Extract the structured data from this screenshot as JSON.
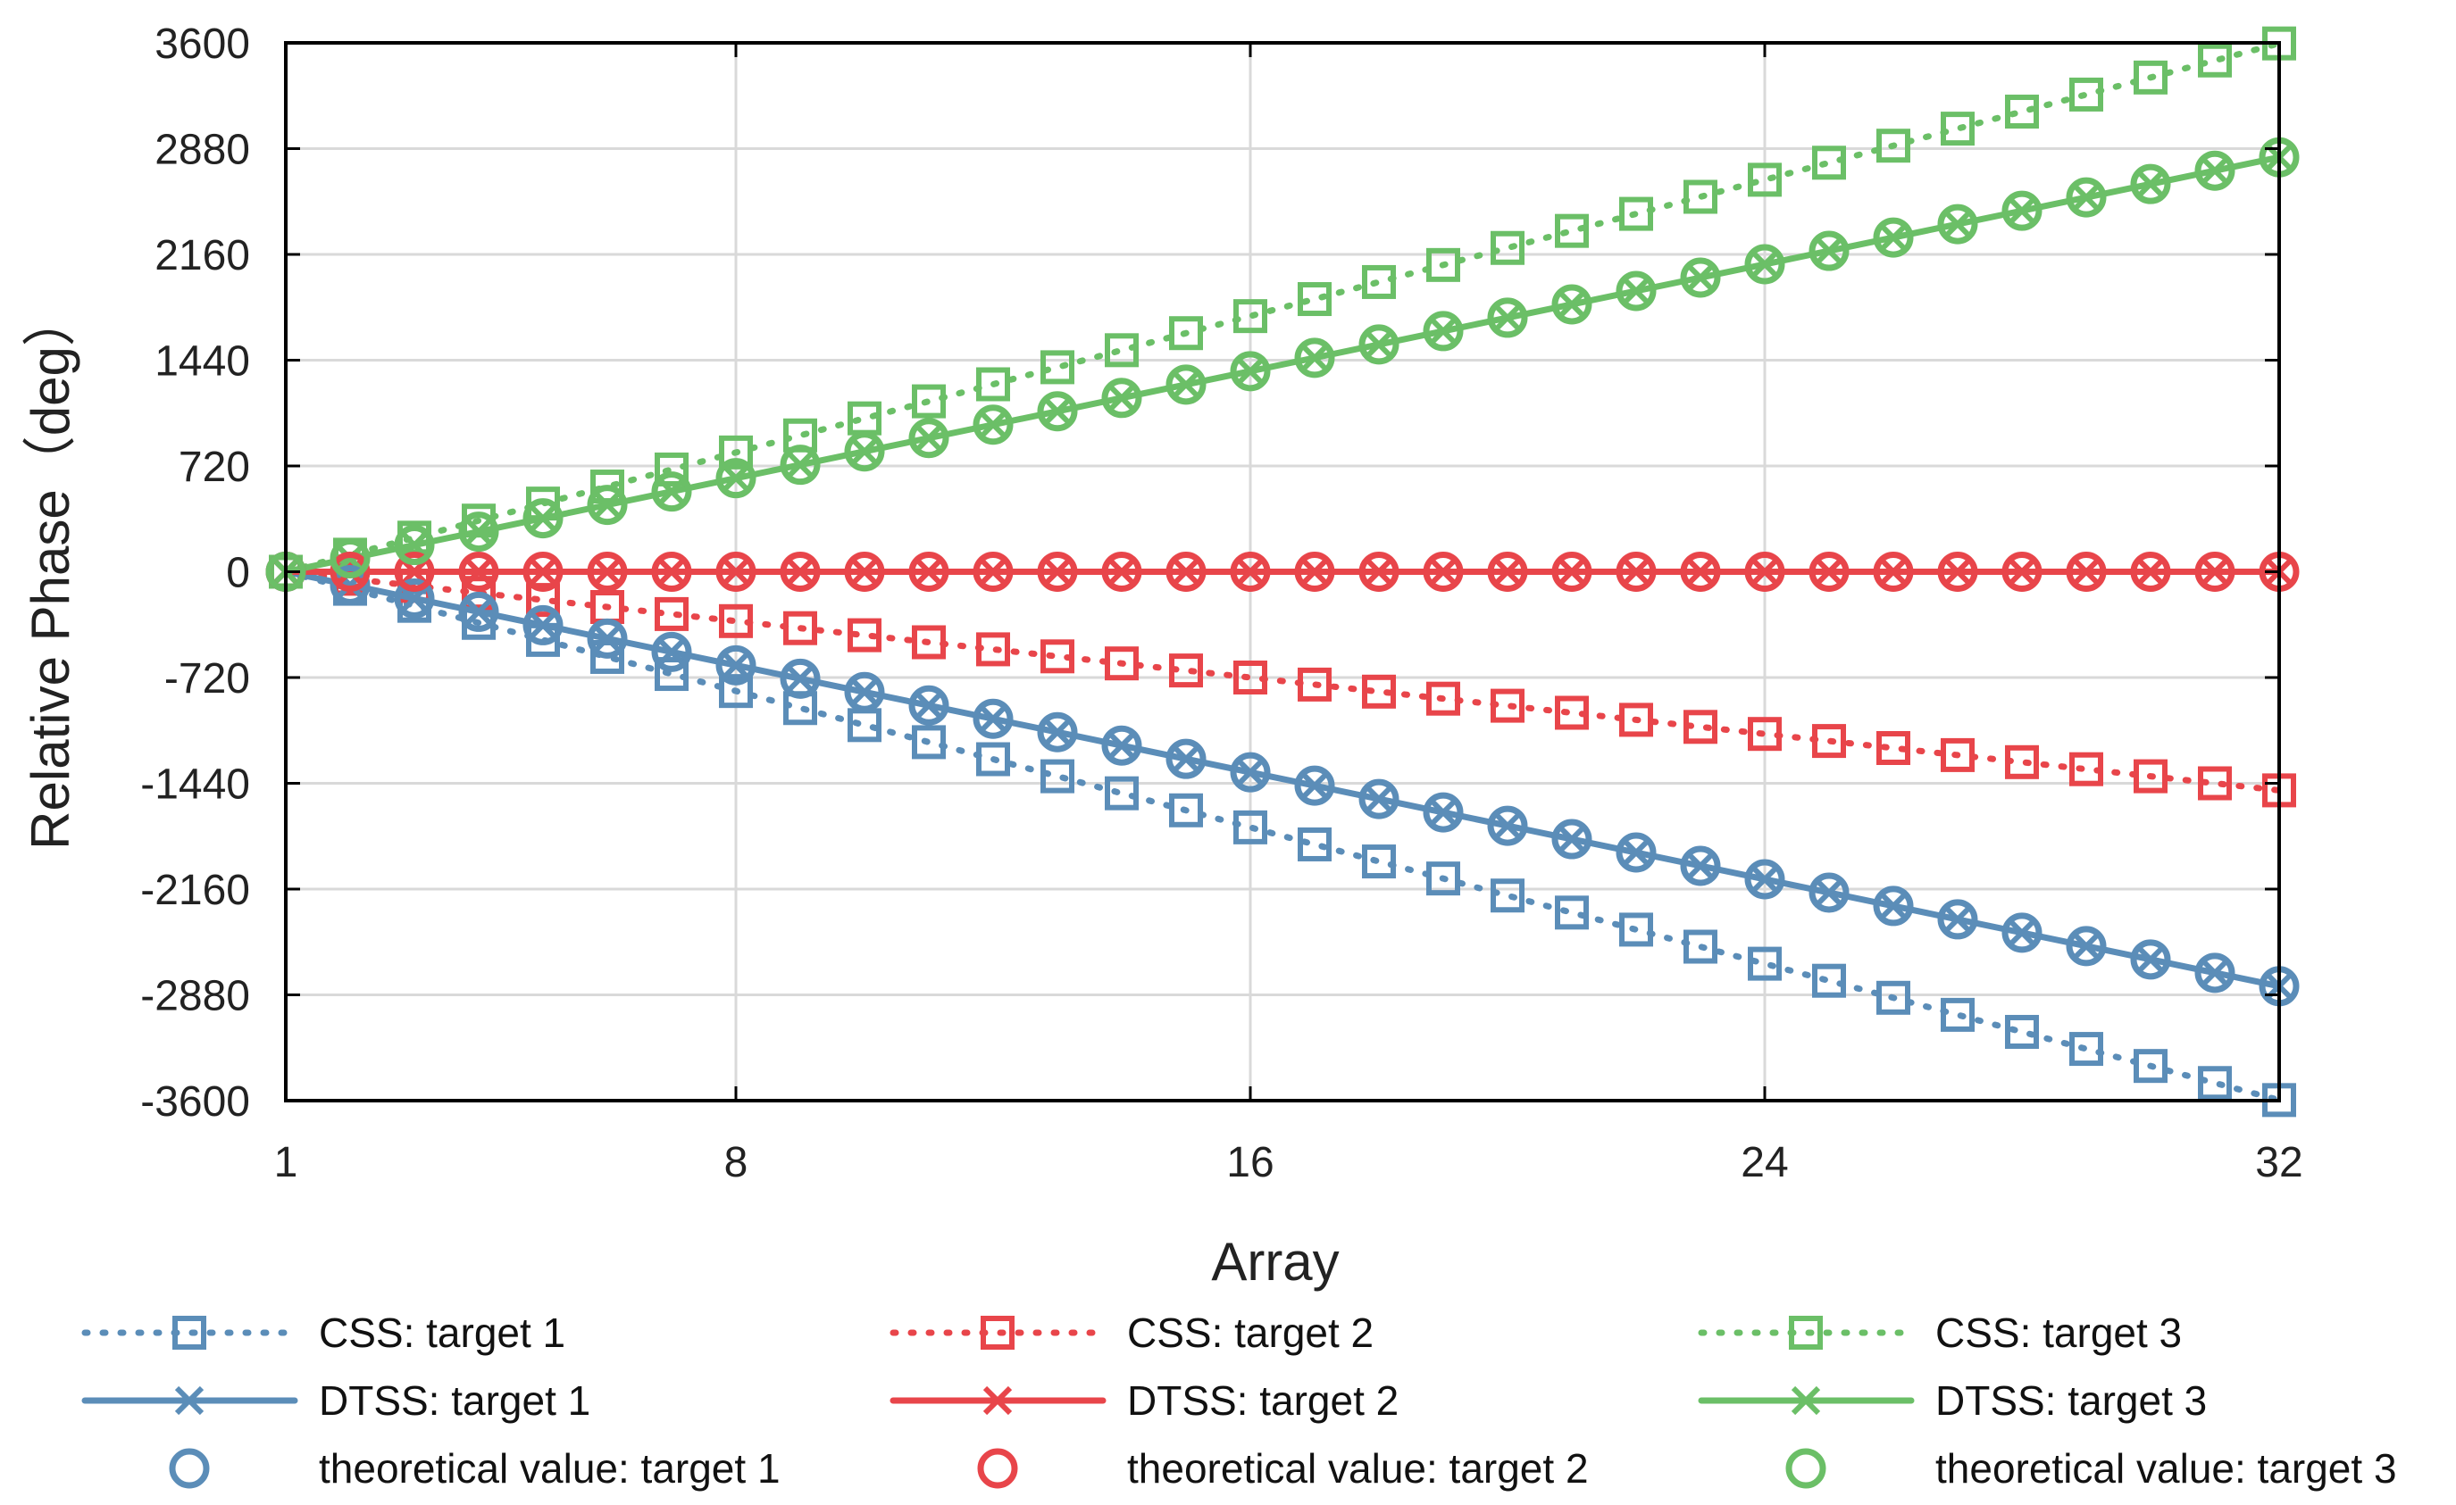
{
  "chart_data": {
    "type": "line",
    "title": "",
    "xlabel": "Array",
    "ylabel": "Relative Phase（deg）",
    "xlim": [
      1,
      32
    ],
    "ylim": [
      -3600,
      3600
    ],
    "xticks": [
      1,
      8,
      16,
      24,
      32
    ],
    "yticks": [
      3600,
      2880,
      2160,
      1440,
      720,
      0,
      -720,
      -1440,
      -2160,
      -2880,
      -3600
    ],
    "grid": true,
    "legend_position": "bottom",
    "x": [
      1,
      2,
      3,
      4,
      5,
      6,
      7,
      8,
      9,
      10,
      11,
      12,
      13,
      14,
      15,
      16,
      17,
      18,
      19,
      20,
      21,
      22,
      23,
      24,
      25,
      26,
      27,
      28,
      29,
      30,
      31,
      32
    ],
    "series": [
      {
        "name": "CSS: target 1",
        "color": "#5B8DB8",
        "line": "dotted",
        "marker": "square",
        "slope": -116
      },
      {
        "name": "CSS: target 2",
        "color": "#E8454A",
        "line": "dotted",
        "marker": "square",
        "slope": -48
      },
      {
        "name": "CSS: target 3",
        "color": "#6BBF67",
        "line": "dotted",
        "marker": "square",
        "slope": 116
      },
      {
        "name": "DTSS: target 1",
        "color": "#5B8DB8",
        "line": "solid",
        "marker": "x",
        "slope": -91
      },
      {
        "name": "DTSS: target 2",
        "color": "#E8454A",
        "line": "solid",
        "marker": "x",
        "slope": 0
      },
      {
        "name": "DTSS: target 3",
        "color": "#6BBF67",
        "line": "solid",
        "marker": "x",
        "slope": 91
      },
      {
        "name": "theoretical value: target 1",
        "color": "#5B8DB8",
        "line": "none",
        "marker": "circle",
        "slope": -91
      },
      {
        "name": "theoretical value: target 2",
        "color": "#E8454A",
        "line": "none",
        "marker": "circle",
        "slope": 0
      },
      {
        "name": "theoretical value: target 3",
        "color": "#6BBF67",
        "line": "none",
        "marker": "circle",
        "slope": 91
      }
    ]
  }
}
